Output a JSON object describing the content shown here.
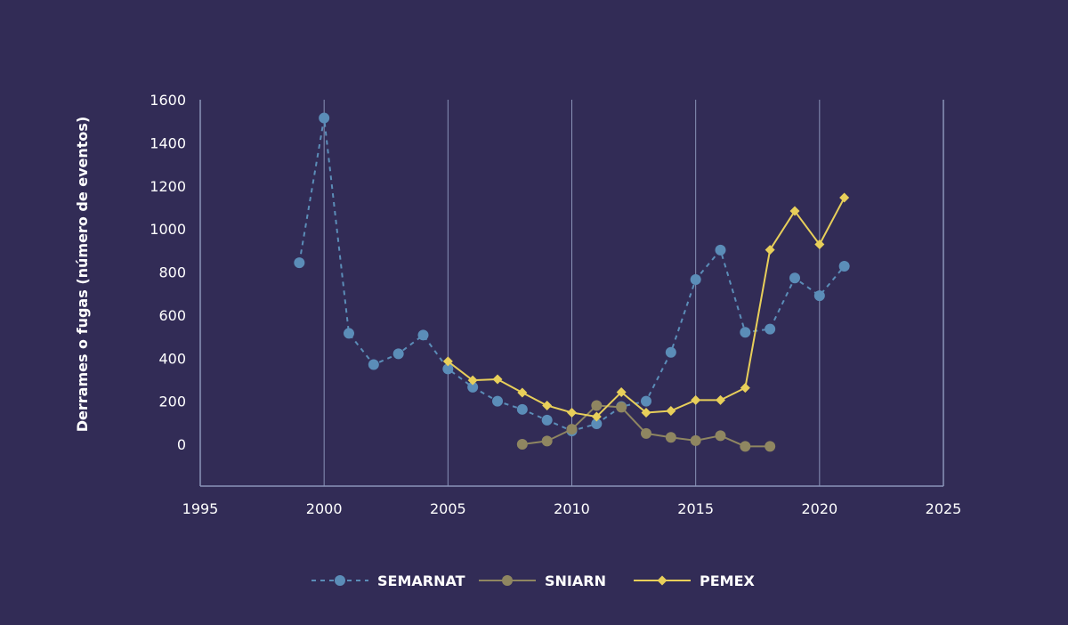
{
  "chart_data": {
    "type": "line",
    "title": "",
    "xlabel": "",
    "ylabel": "Derrames o fugas (número de eventos)",
    "xlim": [
      1995,
      2025
    ],
    "ylim": [
      -200,
      1600
    ],
    "x_ticks": [
      1995,
      2000,
      2005,
      2010,
      2015,
      2020,
      2025
    ],
    "y_ticks": [
      0,
      200,
      400,
      600,
      800,
      1000,
      1200,
      1400,
      1600
    ],
    "grid": "vertical",
    "legend_position": "bottom",
    "series": [
      {
        "name": "SEMARNAT",
        "color": "#5b8db8",
        "line_style": "dashed",
        "marker": "circle",
        "points": [
          [
            1999,
            843
          ],
          [
            2000,
            1515
          ],
          [
            2001,
            515
          ],
          [
            2002,
            370
          ],
          [
            2003,
            420
          ],
          [
            2004,
            507
          ],
          [
            2005,
            350
          ],
          [
            2006,
            265
          ],
          [
            2007,
            200
          ],
          [
            2008,
            162
          ],
          [
            2009,
            112
          ],
          [
            2010,
            62
          ],
          [
            2011,
            95
          ],
          [
            2012,
            175
          ],
          [
            2013,
            200
          ],
          [
            2014,
            427
          ],
          [
            2015,
            765
          ],
          [
            2016,
            902
          ],
          [
            2017,
            520
          ],
          [
            2018,
            535
          ],
          [
            2019,
            772
          ],
          [
            2020,
            690
          ],
          [
            2021,
            827
          ]
        ]
      },
      {
        "name": "SNIARN",
        "color": "#8f8661",
        "line_style": "solid",
        "marker": "circle",
        "points": [
          [
            2008,
            0
          ],
          [
            2009,
            15
          ],
          [
            2010,
            70
          ],
          [
            2011,
            180
          ],
          [
            2012,
            172
          ],
          [
            2013,
            50
          ],
          [
            2014,
            32
          ],
          [
            2015,
            17
          ],
          [
            2016,
            40
          ],
          [
            2017,
            -10
          ],
          [
            2018,
            -10
          ]
        ]
      },
      {
        "name": "PEMEX",
        "color": "#e8cf5a",
        "line_style": "solid",
        "marker": "diamond",
        "points": [
          [
            2005,
            385
          ],
          [
            2006,
            297
          ],
          [
            2007,
            302
          ],
          [
            2008,
            240
          ],
          [
            2009,
            180
          ],
          [
            2010,
            147
          ],
          [
            2011,
            128
          ],
          [
            2012,
            242
          ],
          [
            2013,
            147
          ],
          [
            2014,
            155
          ],
          [
            2015,
            205
          ],
          [
            2016,
            205
          ],
          [
            2017,
            262
          ],
          [
            2018,
            903
          ],
          [
            2019,
            1083
          ],
          [
            2020,
            928
          ],
          [
            2021,
            1145
          ]
        ]
      }
    ]
  }
}
